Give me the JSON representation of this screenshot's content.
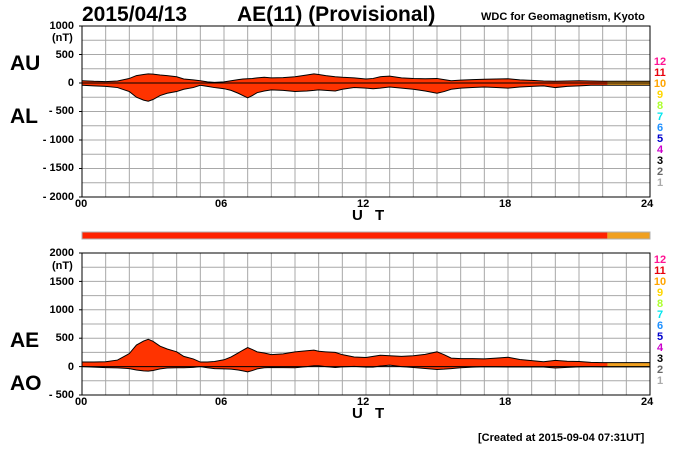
{
  "header": {
    "date": "2015/04/13",
    "title": "AE(11) (Provisional)",
    "source": "WDC for Geomagnetism, Kyoto"
  },
  "footer": {
    "created": "[Created at 2015-09-04 07:31UT]"
  },
  "legend_levels": [
    {
      "label": "12",
      "color": "#ff1493"
    },
    {
      "label": "11",
      "color": "#e8000b"
    },
    {
      "label": "10",
      "color": "#ffa500"
    },
    {
      "label": "9",
      "color": "#ffd700"
    },
    {
      "label": "8",
      "color": "#adff2f"
    },
    {
      "label": "7",
      "color": "#00e5ee"
    },
    {
      "label": "6",
      "color": "#1e90ff"
    },
    {
      "label": "5",
      "color": "#0000cd"
    },
    {
      "label": "4",
      "color": "#cc00cc"
    },
    {
      "label": "3",
      "color": "#000000"
    },
    {
      "label": "2",
      "color": "#666666"
    },
    {
      "label": "1",
      "color": "#aaaaaa"
    }
  ],
  "colors": {
    "main_fill": "#ff3300",
    "late_fill": "#f0a020",
    "quality_bar_main": "#ff2200",
    "quality_bar_late": "#f0a020"
  },
  "quality_bar": {
    "segments": [
      {
        "from": 0,
        "to": 22.2,
        "level": "11"
      },
      {
        "from": 22.2,
        "to": 24,
        "level": "10"
      }
    ]
  },
  "chart_data": [
    {
      "type": "area",
      "unit": "(nT)",
      "series_labels": [
        "AU",
        "AL"
      ],
      "xlabel": "U T",
      "xticks": [
        "00",
        "06",
        "12",
        "18",
        "24"
      ],
      "xlim": [
        0,
        24
      ],
      "ylim": [
        -2000,
        1000
      ],
      "yticks": [
        "1000",
        "500",
        "0",
        "- 500",
        "- 1000",
        "- 1500",
        "- 2000"
      ],
      "grid": true,
      "x": [
        0,
        0.5,
        1,
        1.5,
        2,
        2.3,
        2.6,
        2.8,
        3,
        3.3,
        3.6,
        4,
        4.3,
        4.7,
        5,
        5.3,
        5.6,
        5.8,
        6,
        6.3,
        6.6,
        6.8,
        7,
        7.2,
        7.4,
        7.7,
        8,
        8.5,
        9,
        9.5,
        9.8,
        10,
        10.3,
        10.7,
        11,
        11.5,
        12,
        12.3,
        12.6,
        13,
        13.5,
        14,
        14.5,
        15,
        15.3,
        15.6,
        16,
        16.5,
        17,
        17.5,
        18,
        18.5,
        19,
        19.5,
        20,
        20.5,
        21,
        21.5,
        22,
        22.2,
        22.5,
        23,
        23.5,
        24
      ],
      "series": [
        {
          "name": "AU",
          "values": [
            40,
            30,
            25,
            35,
            80,
            130,
            150,
            160,
            155,
            140,
            130,
            110,
            70,
            55,
            40,
            20,
            10,
            15,
            20,
            40,
            60,
            70,
            75,
            80,
            90,
            100,
            90,
            95,
            110,
            140,
            160,
            150,
            130,
            110,
            100,
            90,
            70,
            80,
            110,
            120,
            90,
            80,
            75,
            80,
            60,
            40,
            50,
            60,
            65,
            70,
            75,
            55,
            45,
            35,
            30,
            35,
            40,
            35,
            30,
            30,
            30,
            30,
            30,
            30
          ]
        },
        {
          "name": "AL",
          "values": [
            -40,
            -50,
            -60,
            -80,
            -150,
            -250,
            -300,
            -320,
            -290,
            -220,
            -180,
            -150,
            -110,
            -80,
            -40,
            -60,
            -80,
            -90,
            -100,
            -130,
            -180,
            -220,
            -260,
            -220,
            -170,
            -140,
            -120,
            -130,
            -150,
            -140,
            -130,
            -120,
            -130,
            -140,
            -110,
            -80,
            -90,
            -100,
            -90,
            -70,
            -90,
            -110,
            -140,
            -180,
            -150,
            -110,
            -90,
            -80,
            -70,
            -80,
            -90,
            -70,
            -60,
            -50,
            -80,
            -60,
            -50,
            -40,
            -40,
            -40,
            -40,
            -40,
            -40,
            -40
          ]
        }
      ]
    },
    {
      "type": "area",
      "unit": "(nT)",
      "series_labels": [
        "AE",
        "AO"
      ],
      "xlabel": "U T",
      "xticks": [
        "00",
        "06",
        "12",
        "18",
        "24"
      ],
      "xlim": [
        0,
        24
      ],
      "ylim": [
        -500,
        2000
      ],
      "yticks": [
        "2000",
        "1500",
        "1000",
        "500",
        "0",
        "- 500"
      ],
      "grid": true,
      "x": [
        0,
        0.5,
        1,
        1.5,
        2,
        2.3,
        2.6,
        2.8,
        3,
        3.3,
        3.6,
        4,
        4.3,
        4.7,
        5,
        5.3,
        5.6,
        5.8,
        6,
        6.3,
        6.6,
        6.8,
        7,
        7.2,
        7.4,
        7.7,
        8,
        8.5,
        9,
        9.5,
        9.8,
        10,
        10.3,
        10.7,
        11,
        11.5,
        12,
        12.3,
        12.6,
        13,
        13.5,
        14,
        14.5,
        15,
        15.3,
        15.6,
        16,
        16.5,
        17,
        17.5,
        18,
        18.5,
        19,
        19.5,
        20,
        20.5,
        21,
        21.5,
        22,
        22.2,
        22.5,
        23,
        23.5,
        24
      ],
      "series": [
        {
          "name": "AE",
          "values": [
            80,
            80,
            85,
            115,
            230,
            380,
            450,
            480,
            445,
            360,
            310,
            260,
            180,
            135,
            80,
            80,
            90,
            105,
            120,
            170,
            240,
            290,
            335,
            300,
            260,
            240,
            210,
            225,
            260,
            280,
            290,
            270,
            260,
            250,
            210,
            170,
            160,
            180,
            200,
            190,
            180,
            190,
            215,
            260,
            210,
            150,
            140,
            140,
            135,
            150,
            165,
            125,
            105,
            85,
            110,
            95,
            90,
            75,
            70,
            70,
            70,
            70,
            70,
            70
          ]
        },
        {
          "name": "AO",
          "values": [
            0,
            -10,
            -18,
            -22,
            -35,
            -60,
            -75,
            -80,
            -68,
            -40,
            -25,
            -20,
            -20,
            -13,
            0,
            -20,
            -35,
            -38,
            -40,
            -45,
            -60,
            -75,
            -92,
            -70,
            -40,
            -20,
            -15,
            -18,
            -20,
            0,
            15,
            15,
            0,
            -15,
            -5,
            5,
            -10,
            -10,
            10,
            25,
            0,
            -15,
            -33,
            -50,
            -45,
            -35,
            -20,
            -10,
            -3,
            -5,
            -8,
            -8,
            -8,
            -8,
            -25,
            -13,
            -5,
            -3,
            -5,
            -5,
            -5,
            -5,
            -5,
            -5
          ]
        }
      ]
    }
  ]
}
